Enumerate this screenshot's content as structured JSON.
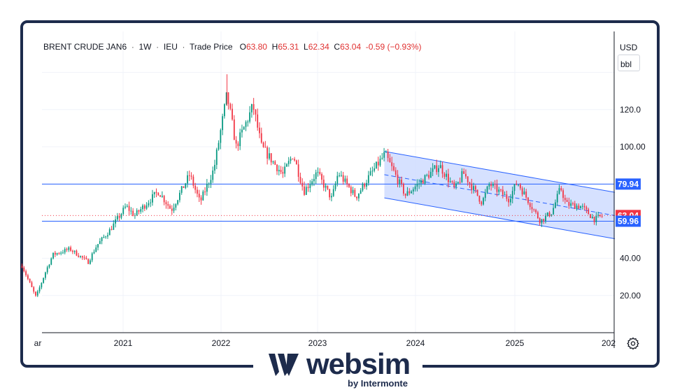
{
  "legend": {
    "symbol": "BRENT CRUDE JAN6",
    "interval": "1W",
    "exchange": "IEU",
    "price_type": "Trade Price",
    "o_label": "O",
    "open": "63.80",
    "h_label": "H",
    "high": "65.31",
    "l_label": "L",
    "low": "62.34",
    "c_label": "C",
    "close": "63.04",
    "change": "-0.59 (−0.93%)"
  },
  "currency": "USD",
  "unit": "bbl",
  "brand": {
    "name": "websim",
    "tagline": "by Intermonte",
    "color": "#1d2b4c"
  },
  "colors": {
    "up": "#089981",
    "down": "#f23645",
    "level_line": "#2962ff",
    "channel_fill": "#cfdcff"
  },
  "chart_data": {
    "type": "candlestick",
    "x_tick_labels": [
      "ar",
      "2021",
      "2022",
      "2023",
      "2024",
      "2025",
      "202"
    ],
    "y_ticks": [
      20,
      40,
      60,
      80,
      100,
      120
    ],
    "y_tick_labels": [
      "20.00",
      "40.00",
      "60.00",
      "80.00",
      "100.00",
      "120.0"
    ],
    "ylim": [
      0,
      140
    ],
    "xlim": [
      "2020-03-01",
      "2026-01-01"
    ],
    "horizontal_levels": [
      {
        "label": "79.94",
        "value": 79.94
      },
      {
        "label": "59.96",
        "value": 59.96
      }
    ],
    "last_price": {
      "label": "63.04",
      "value": 63.04
    },
    "channel": {
      "start": "2023-09-25",
      "end": "2026-01-01",
      "upper": [
        97.5,
        75.5
      ],
      "lower": [
        72.5,
        50.5
      ]
    },
    "series_anchors": [
      [
        "2020-03-01",
        36
      ],
      [
        "2020-04-20",
        19
      ],
      [
        "2020-05-25",
        33
      ],
      [
        "2020-06-20",
        42
      ],
      [
        "2020-08-20",
        45
      ],
      [
        "2020-10-25",
        38
      ],
      [
        "2020-11-25",
        47
      ],
      [
        "2021-01-10",
        55
      ],
      [
        "2021-03-10",
        68
      ],
      [
        "2021-04-10",
        63
      ],
      [
        "2021-06-01",
        71
      ],
      [
        "2021-07-05",
        76
      ],
      [
        "2021-08-20",
        66
      ],
      [
        "2021-10-25",
        85
      ],
      [
        "2021-12-01",
        70
      ],
      [
        "2022-01-20",
        88
      ],
      [
        "2022-03-08",
        128
      ],
      [
        "2022-04-10",
        100
      ],
      [
        "2022-06-10",
        122
      ],
      [
        "2022-07-10",
        100
      ],
      [
        "2022-08-15",
        93
      ],
      [
        "2022-09-25",
        85
      ],
      [
        "2022-11-01",
        96
      ],
      [
        "2022-12-10",
        76
      ],
      [
        "2023-01-25",
        86
      ],
      [
        "2023-03-20",
        72
      ],
      [
        "2023-04-12",
        86
      ],
      [
        "2023-06-15",
        73
      ],
      [
        "2023-08-01",
        84
      ],
      [
        "2023-09-27",
        96
      ],
      [
        "2023-12-10",
        74
      ],
      [
        "2024-04-10",
        90
      ],
      [
        "2024-06-05",
        77
      ],
      [
        "2024-07-05",
        86
      ],
      [
        "2024-09-10",
        70
      ],
      [
        "2024-10-07",
        80
      ],
      [
        "2024-12-15",
        72
      ],
      [
        "2025-01-15",
        81
      ],
      [
        "2025-04-08",
        60
      ],
      [
        "2025-05-20",
        65
      ],
      [
        "2025-06-20",
        78
      ],
      [
        "2025-07-10",
        69
      ],
      [
        "2025-09-01",
        68
      ],
      [
        "2025-10-20",
        61
      ],
      [
        "2025-11-17",
        63
      ]
    ]
  }
}
